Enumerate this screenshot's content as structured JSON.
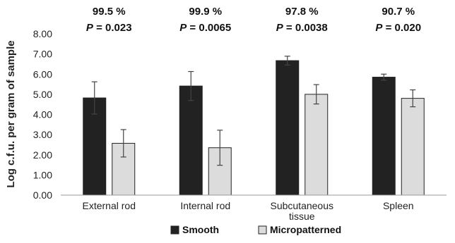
{
  "chart_data": {
    "type": "bar",
    "title": "",
    "xlabel": "",
    "ylabel": "Log c.f.u. per gram of sample",
    "ylim": [
      0,
      8
    ],
    "yticks": [
      "0.00",
      "1.00",
      "2.00",
      "3.00",
      "4.00",
      "5.00",
      "6.00",
      "7.00",
      "8.00"
    ],
    "categories": [
      [
        "External rod"
      ],
      [
        "Internal rod"
      ],
      [
        "Subcutaneous",
        "tissue"
      ],
      [
        "Spleen"
      ]
    ],
    "series": [
      {
        "name": "Smooth",
        "color": "#222222",
        "values": [
          4.82,
          5.41,
          6.67,
          5.85
        ],
        "errors": [
          0.8,
          0.72,
          0.22,
          0.15
        ]
      },
      {
        "name": "Micropatterned",
        "color": "#dcdcdc",
        "values": [
          2.57,
          2.35,
          5.0,
          4.8
        ],
        "errors": [
          0.68,
          0.87,
          0.48,
          0.42
        ]
      }
    ],
    "annotations": [
      {
        "percent": "99.5 %",
        "p_label": "P",
        "p_value": "= 0.023"
      },
      {
        "percent": "99.9 %",
        "p_label": "P",
        "p_value": "= 0.0065"
      },
      {
        "percent": "97.8 %",
        "p_label": "P",
        "p_value": "= 0.0038"
      },
      {
        "percent": "90.7 %",
        "p_label": "P",
        "p_value": "= 0.020"
      }
    ],
    "legend_position": "bottom",
    "grid": false
  }
}
